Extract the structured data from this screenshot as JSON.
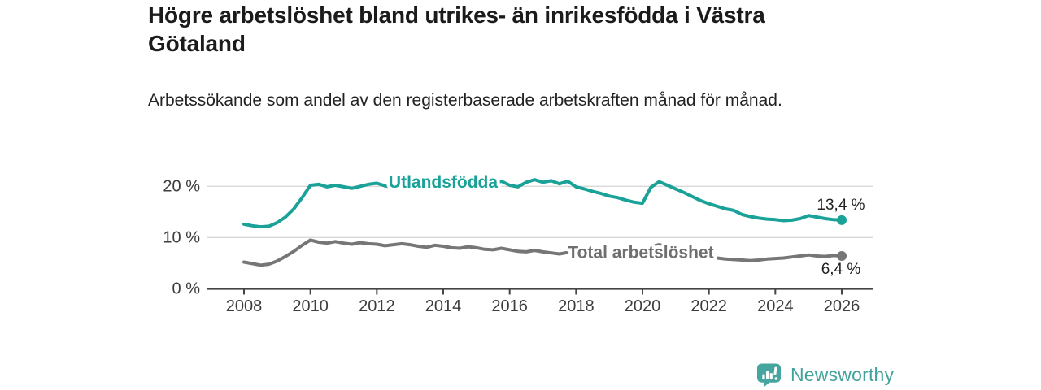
{
  "header": {
    "title": "Högre arbetslöshet bland utrikes- än inrikesfödda i Västra Götaland",
    "subtitle": "Arbetssökande som andel av den registerbaserade arbetskraften månad för månad."
  },
  "footer": {
    "brand": "Newsworthy",
    "brand_color": "#46a59e"
  },
  "chart_data": {
    "type": "line",
    "title": "Högre arbetslöshet bland utrikes- än inrikesfödda i Västra Götaland",
    "subtitle": "Arbetssökande som andel av den registerbaserade arbetskraften månad för månad.",
    "xlabel": "",
    "ylabel": "",
    "grid": "horizontal",
    "legend_position": "inline-labels",
    "xlim": [
      2007.05,
      2026.95
    ],
    "ylim": [
      0,
      23.8
    ],
    "x_ticks": [
      2008,
      2010,
      2012,
      2014,
      2016,
      2018,
      2020,
      2022,
      2024,
      2026
    ],
    "y_ticks": [
      {
        "value": 0,
        "label": "0 %"
      },
      {
        "value": 10,
        "label": "10 %"
      },
      {
        "value": 20,
        "label": "20 %"
      }
    ],
    "colors": {
      "grid": "#d9d9d9",
      "axis": "#454545",
      "tick_label": "#3d3d3d",
      "end_label_text": "#1f1f1f"
    },
    "x": [
      2008,
      2008.25,
      2008.5,
      2008.75,
      2009,
      2009.25,
      2009.5,
      2009.75,
      2010,
      2010.25,
      2010.5,
      2010.75,
      2011,
      2011.25,
      2011.5,
      2011.75,
      2012,
      2012.25,
      2012.5,
      2012.75,
      2013,
      2013.25,
      2013.5,
      2013.75,
      2014,
      2014.25,
      2014.5,
      2014.75,
      2015,
      2015.25,
      2015.5,
      2015.75,
      2016,
      2016.25,
      2016.5,
      2016.75,
      2017,
      2017.25,
      2017.5,
      2017.75,
      2018,
      2018.25,
      2018.5,
      2018.75,
      2019,
      2019.25,
      2019.5,
      2019.75,
      2020,
      2020.25,
      2020.5,
      2020.75,
      2021,
      2021.25,
      2021.5,
      2021.75,
      2022,
      2022.25,
      2022.5,
      2022.75,
      2023,
      2023.25,
      2023.5,
      2023.75,
      2024,
      2024.25,
      2024.5,
      2024.75,
      2025,
      2025.25,
      2025.5,
      2025.75,
      2026
    ],
    "series": [
      {
        "name": "Utlandsfödda",
        "color": "#1aa298",
        "label_color": "#1aa298",
        "end_label": "13,4 %",
        "end_value": 13.4,
        "label_anchor": {
          "x": 2014.0,
          "y": 20.8
        },
        "values": [
          12.6,
          12.3,
          12.1,
          12.2,
          12.9,
          14.0,
          15.6,
          17.8,
          20.2,
          20.4,
          19.9,
          20.2,
          19.9,
          19.6,
          20.0,
          20.4,
          20.6,
          20.1,
          19.8,
          20.2,
          20.4,
          20.0,
          20.3,
          20.6,
          20.2,
          20.0,
          20.4,
          20.7,
          20.4,
          20.2,
          20.5,
          21.0,
          20.2,
          19.9,
          20.8,
          21.3,
          20.8,
          21.1,
          20.5,
          21.0,
          19.9,
          19.5,
          19.0,
          18.6,
          18.1,
          17.8,
          17.3,
          16.9,
          16.7,
          19.8,
          20.9,
          20.2,
          19.5,
          18.8,
          18.0,
          17.2,
          16.6,
          16.1,
          15.6,
          15.3,
          14.5,
          14.1,
          13.8,
          13.6,
          13.5,
          13.3,
          13.4,
          13.7,
          14.3,
          14.0,
          13.7,
          13.5,
          13.4
        ]
      },
      {
        "name": "Total arbetslöshet",
        "color": "#767676",
        "label_color": "#6f6f6f",
        "end_label": "6,4 %",
        "end_value": 6.4,
        "label_anchor": {
          "x": 2019.95,
          "y": 7.0
        },
        "values": [
          5.2,
          4.9,
          4.6,
          4.8,
          5.4,
          6.3,
          7.3,
          8.5,
          9.5,
          9.1,
          8.9,
          9.2,
          8.9,
          8.7,
          9.0,
          8.8,
          8.7,
          8.4,
          8.6,
          8.8,
          8.6,
          8.3,
          8.1,
          8.5,
          8.3,
          8.0,
          7.9,
          8.2,
          8.0,
          7.7,
          7.6,
          7.9,
          7.6,
          7.3,
          7.2,
          7.5,
          7.2,
          7.0,
          6.8,
          7.1,
          6.8,
          6.6,
          6.5,
          6.8,
          6.6,
          6.4,
          6.3,
          6.6,
          6.8,
          8.2,
          8.6,
          8.2,
          7.8,
          7.4,
          7.0,
          6.6,
          6.2,
          6.0,
          5.8,
          5.7,
          5.6,
          5.5,
          5.6,
          5.8,
          5.9,
          6.0,
          6.2,
          6.4,
          6.6,
          6.4,
          6.3,
          6.5,
          6.4
        ]
      }
    ]
  }
}
